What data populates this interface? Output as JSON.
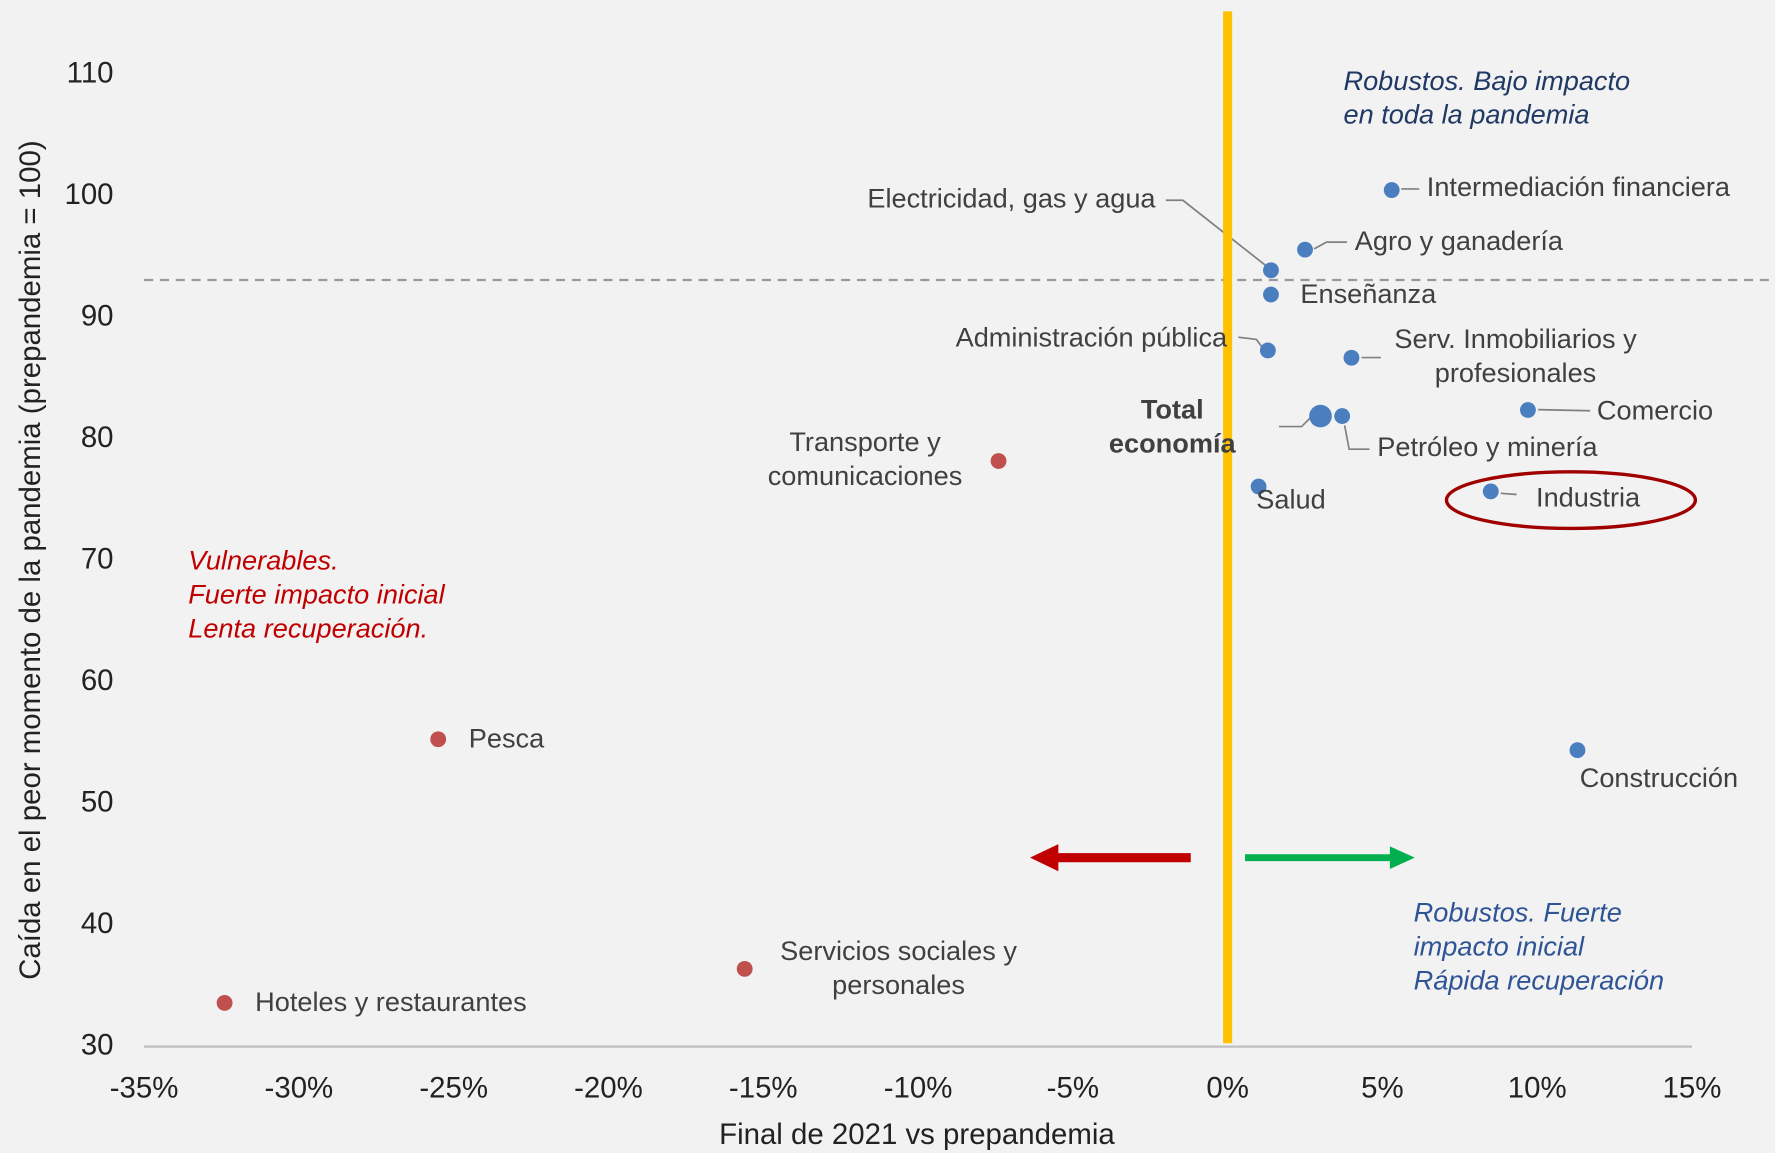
{
  "chart_data": {
    "type": "scatter",
    "xlabel": "Final de 2021 vs prepandemia",
    "ylabel": "Caída en el peor momento de la pandemia (prepandemia = 100)",
    "xlim": [
      -35,
      15
    ],
    "ylim": [
      30,
      110
    ],
    "xticks": [
      {
        "value": -35,
        "label": "-35%"
      },
      {
        "value": -30,
        "label": "-30%"
      },
      {
        "value": -25,
        "label": "-25%"
      },
      {
        "value": -20,
        "label": "-20%"
      },
      {
        "value": -15,
        "label": "-15%"
      },
      {
        "value": -10,
        "label": "-10%"
      },
      {
        "value": -5,
        "label": "-5%"
      },
      {
        "value": 0,
        "label": "0%"
      },
      {
        "value": 5,
        "label": "5%"
      },
      {
        "value": 10,
        "label": "10%"
      },
      {
        "value": 15,
        "label": "15%"
      }
    ],
    "yticks": [
      30,
      40,
      50,
      60,
      70,
      80,
      90,
      100,
      110
    ],
    "hline": 93.1,
    "vline": 0,
    "labels": [
      [
        "Intermediación financiera"
      ],
      [
        "Agro y ganadería"
      ],
      [
        "Electricidad, gas y agua"
      ],
      [
        "Enseñanza"
      ],
      [
        "Administración pública"
      ],
      [
        "Serv. Inmobiliarios y",
        "profesionales"
      ],
      [
        "Comercio"
      ],
      [
        "Total",
        "economía"
      ],
      [
        "Petróleo y minería"
      ],
      [
        "Salud"
      ],
      [
        "Industria"
      ],
      [
        "Construcción"
      ],
      [
        "Transporte y",
        "comunicaciones"
      ],
      [
        "Pesca"
      ],
      [
        "Servicios sociales y",
        "personales"
      ],
      [
        "Hoteles y restaurantes"
      ]
    ],
    "x": [
      5.3,
      2.5,
      1.4,
      1.4,
      1.3,
      4.0,
      9.7,
      3.0,
      3.7,
      1.0,
      8.5,
      11.3,
      -7.4,
      -25.5,
      -15.6,
      -32.4
    ],
    "y": [
      100.5,
      95.6,
      93.9,
      91.9,
      87.3,
      86.7,
      82.4,
      81.9,
      81.9,
      76.1,
      75.7,
      54.4,
      78.2,
      55.3,
      36.4,
      33.6
    ],
    "colors": [
      "#4a7ebf",
      "#4a7ebf",
      "#4a7ebf",
      "#4a7ebf",
      "#4a7ebf",
      "#4a7ebf",
      "#4a7ebf",
      "#4a7ebf",
      "#4a7ebf",
      "#4a7ebf",
      "#4a7ebf",
      "#4a7ebf",
      "#c0504d",
      "#c0504d",
      "#c0504d",
      "#c0504d"
    ],
    "annotations": [
      {
        "lines": [
          "Robustos. Bajo impacto",
          "en toda la pandemia"
        ],
        "color": "#1f3864"
      },
      {
        "lines": [
          "Vulnerables.",
          "Fuerte impacto inicial",
          "Lenta recuperación."
        ],
        "color": "#c00000"
      },
      {
        "lines": [
          "Robustos. Fuerte",
          "impacto inicial",
          "Rápida recuperación"
        ],
        "color": "#2f5496"
      }
    ],
    "vline_color": "#ffc000",
    "grid": false
  }
}
